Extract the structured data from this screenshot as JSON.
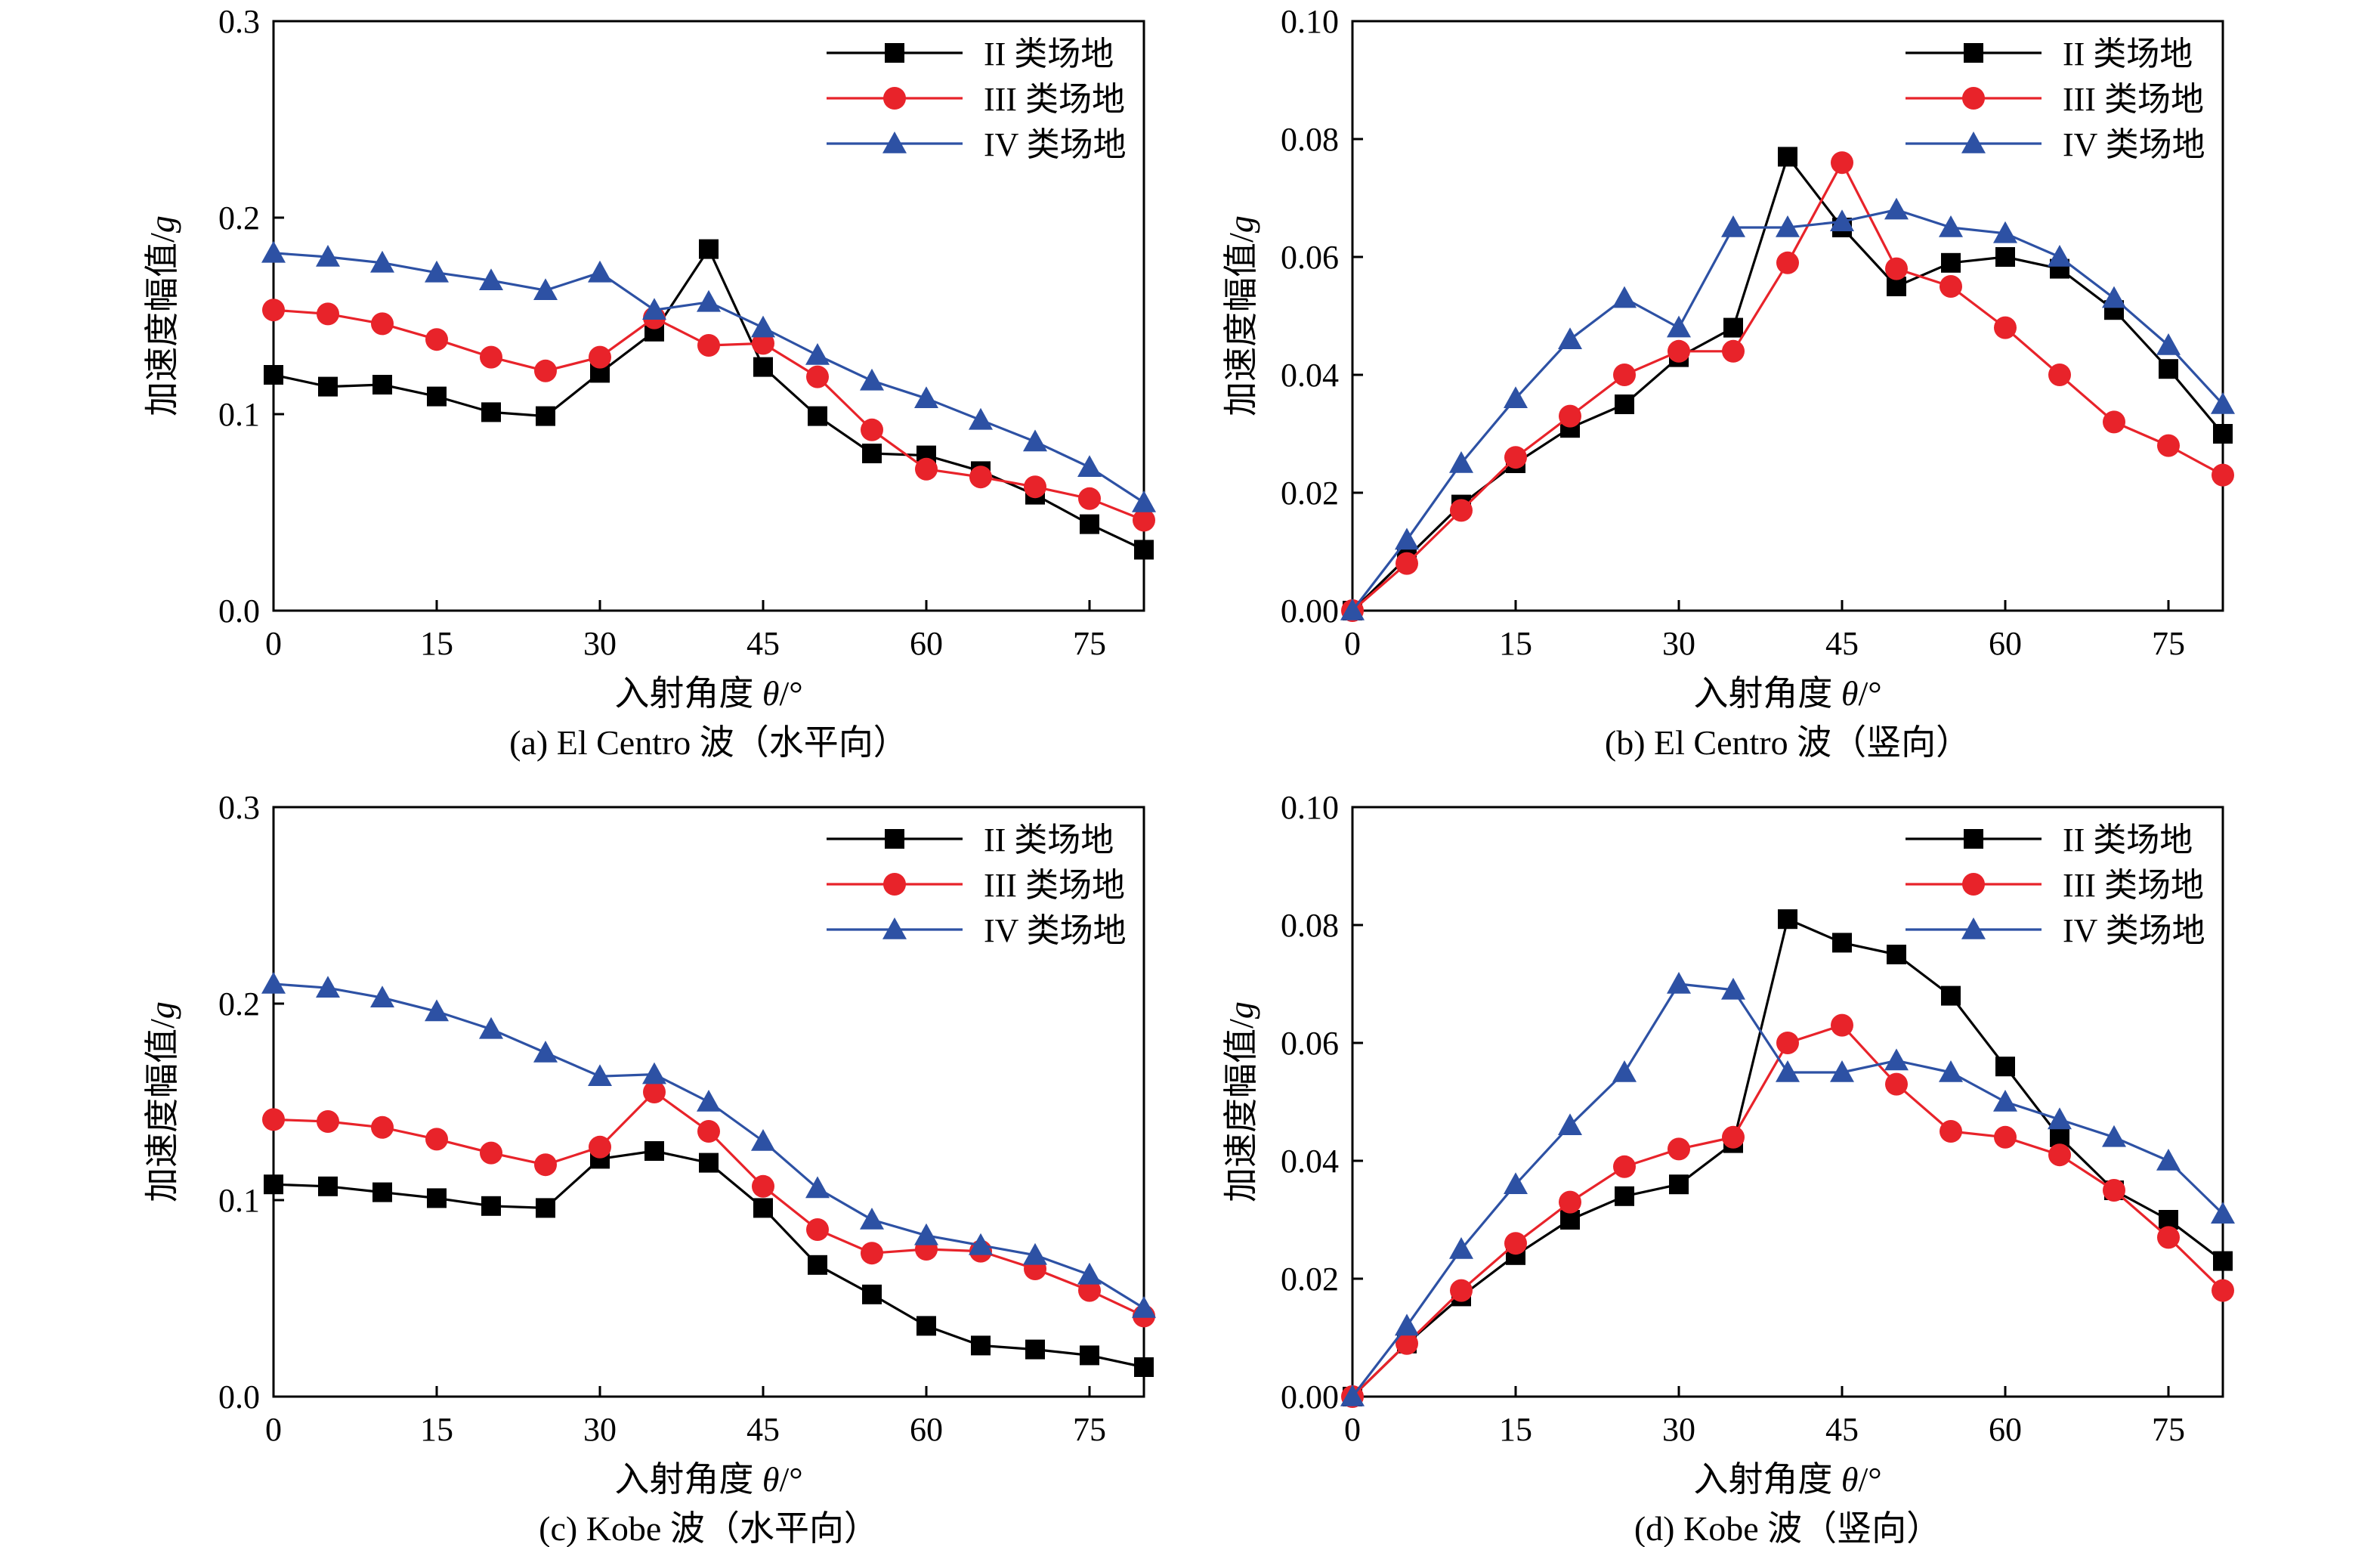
{
  "chart_data": [
    {
      "type": "line",
      "caption": "(a) El Centro 波（水平向）",
      "xlabel_main": "入射角度 ",
      "xlabel_var": "θ",
      "xlabel_unit": "/°",
      "ylabel_main": "加速度幅值/",
      "ylabel_var": "g",
      "xlim": [
        0,
        80
      ],
      "ylim": [
        0,
        0.3
      ],
      "xticks": [
        0,
        15,
        30,
        45,
        60,
        75
      ],
      "yticks": [
        0.0,
        0.1,
        0.2,
        0.3
      ],
      "ytick_decimals": 1,
      "legend_position": "top-right",
      "x": [
        0,
        5,
        10,
        15,
        20,
        25,
        30,
        35,
        40,
        45,
        50,
        55,
        60,
        65,
        70,
        75,
        80
      ],
      "series": [
        {
          "name": "II 类场地",
          "marker": "square",
          "color": "#000000",
          "values": [
            0.12,
            0.114,
            0.115,
            0.109,
            0.101,
            0.099,
            0.121,
            0.142,
            0.184,
            0.124,
            0.099,
            0.08,
            0.079,
            0.071,
            0.059,
            0.044,
            0.031
          ]
        },
        {
          "name": "III 类场地",
          "marker": "circle",
          "color": "#e8232a",
          "values": [
            0.153,
            0.151,
            0.146,
            0.138,
            0.129,
            0.122,
            0.129,
            0.149,
            0.135,
            0.136,
            0.119,
            0.092,
            0.072,
            0.068,
            0.063,
            0.057,
            0.046
          ]
        },
        {
          "name": "IV 类场地",
          "marker": "triangle",
          "color": "#2d51a4",
          "values": [
            0.182,
            0.18,
            0.177,
            0.172,
            0.168,
            0.163,
            0.172,
            0.153,
            0.157,
            0.144,
            0.13,
            0.117,
            0.108,
            0.097,
            0.086,
            0.073,
            0.055
          ]
        }
      ]
    },
    {
      "type": "line",
      "caption": "(b) El Centro 波（竖向）",
      "xlabel_main": "入射角度 ",
      "xlabel_var": "θ",
      "xlabel_unit": "/°",
      "ylabel_main": "加速度幅值/",
      "ylabel_var": "g",
      "xlim": [
        0,
        80
      ],
      "ylim": [
        0,
        0.1
      ],
      "xticks": [
        0,
        15,
        30,
        45,
        60,
        75
      ],
      "yticks": [
        0.0,
        0.02,
        0.04,
        0.06,
        0.08,
        0.1
      ],
      "ytick_decimals": 2,
      "legend_position": "top-right",
      "x": [
        0,
        5,
        10,
        15,
        20,
        25,
        30,
        35,
        40,
        45,
        50,
        55,
        60,
        65,
        70,
        75,
        80
      ],
      "series": [
        {
          "name": "II 类场地",
          "marker": "square",
          "color": "#000000",
          "values": [
            0.0,
            0.009,
            0.018,
            0.025,
            0.031,
            0.035,
            0.043,
            0.048,
            0.077,
            0.065,
            0.055,
            0.059,
            0.06,
            0.058,
            0.051,
            0.041,
            0.03
          ]
        },
        {
          "name": "III 类场地",
          "marker": "circle",
          "color": "#e8232a",
          "values": [
            0.0,
            0.008,
            0.017,
            0.026,
            0.033,
            0.04,
            0.044,
            0.044,
            0.059,
            0.076,
            0.058,
            0.055,
            0.048,
            0.04,
            0.032,
            0.028,
            0.023
          ]
        },
        {
          "name": "IV 类场地",
          "marker": "triangle",
          "color": "#2d51a4",
          "values": [
            0.0,
            0.012,
            0.025,
            0.036,
            0.046,
            0.053,
            0.048,
            0.065,
            0.065,
            0.066,
            0.068,
            0.065,
            0.064,
            0.06,
            0.053,
            0.045,
            0.035
          ]
        }
      ]
    },
    {
      "type": "line",
      "caption": "(c) Kobe 波（水平向）",
      "xlabel_main": "入射角度 ",
      "xlabel_var": "θ",
      "xlabel_unit": "/°",
      "ylabel_main": "加速度幅值/",
      "ylabel_var": "g",
      "xlim": [
        0,
        80
      ],
      "ylim": [
        0,
        0.3
      ],
      "xticks": [
        0,
        15,
        30,
        45,
        60,
        75
      ],
      "yticks": [
        0.0,
        0.1,
        0.2,
        0.3
      ],
      "ytick_decimals": 1,
      "legend_position": "top-right",
      "x": [
        0,
        5,
        10,
        15,
        20,
        25,
        30,
        35,
        40,
        45,
        50,
        55,
        60,
        65,
        70,
        75,
        80
      ],
      "series": [
        {
          "name": "II 类场地",
          "marker": "square",
          "color": "#000000",
          "values": [
            0.108,
            0.107,
            0.104,
            0.101,
            0.097,
            0.096,
            0.121,
            0.125,
            0.119,
            0.096,
            0.067,
            0.052,
            0.036,
            0.026,
            0.024,
            0.021,
            0.015
          ]
        },
        {
          "name": "III 类场地",
          "marker": "circle",
          "color": "#e8232a",
          "values": [
            0.141,
            0.14,
            0.137,
            0.131,
            0.124,
            0.118,
            0.127,
            0.155,
            0.135,
            0.107,
            0.085,
            0.073,
            0.075,
            0.074,
            0.065,
            0.054,
            0.041
          ]
        },
        {
          "name": "IV 类场地",
          "marker": "triangle",
          "color": "#2d51a4",
          "values": [
            0.21,
            0.208,
            0.203,
            0.196,
            0.187,
            0.175,
            0.163,
            0.164,
            0.15,
            0.13,
            0.106,
            0.09,
            0.082,
            0.077,
            0.072,
            0.062,
            0.045
          ]
        }
      ]
    },
    {
      "type": "line",
      "caption": "(d) Kobe 波（竖向）",
      "xlabel_main": "入射角度 ",
      "xlabel_var": "θ",
      "xlabel_unit": "/°",
      "ylabel_main": "加速度幅值/",
      "ylabel_var": "g",
      "xlim": [
        0,
        80
      ],
      "ylim": [
        0,
        0.1
      ],
      "xticks": [
        0,
        15,
        30,
        45,
        60,
        75
      ],
      "yticks": [
        0.0,
        0.02,
        0.04,
        0.06,
        0.08,
        0.1
      ],
      "ytick_decimals": 2,
      "legend_position": "top-right",
      "x": [
        0,
        5,
        10,
        15,
        20,
        25,
        30,
        35,
        40,
        45,
        50,
        55,
        60,
        65,
        70,
        75,
        80
      ],
      "series": [
        {
          "name": "II 类场地",
          "marker": "square",
          "color": "#000000",
          "values": [
            0.0,
            0.009,
            0.017,
            0.024,
            0.03,
            0.034,
            0.036,
            0.043,
            0.081,
            0.077,
            0.075,
            0.068,
            0.056,
            0.044,
            0.035,
            0.03,
            0.023
          ]
        },
        {
          "name": "III 类场地",
          "marker": "circle",
          "color": "#e8232a",
          "values": [
            0.0,
            0.009,
            0.018,
            0.026,
            0.033,
            0.039,
            0.042,
            0.044,
            0.06,
            0.063,
            0.053,
            0.045,
            0.044,
            0.041,
            0.035,
            0.027,
            0.018
          ]
        },
        {
          "name": "IV 类场地",
          "marker": "triangle",
          "color": "#2d51a4",
          "values": [
            0.0,
            0.012,
            0.025,
            0.036,
            0.046,
            0.055,
            0.07,
            0.069,
            0.055,
            0.055,
            0.057,
            0.055,
            0.05,
            0.047,
            0.044,
            0.04,
            0.031
          ]
        }
      ]
    }
  ]
}
